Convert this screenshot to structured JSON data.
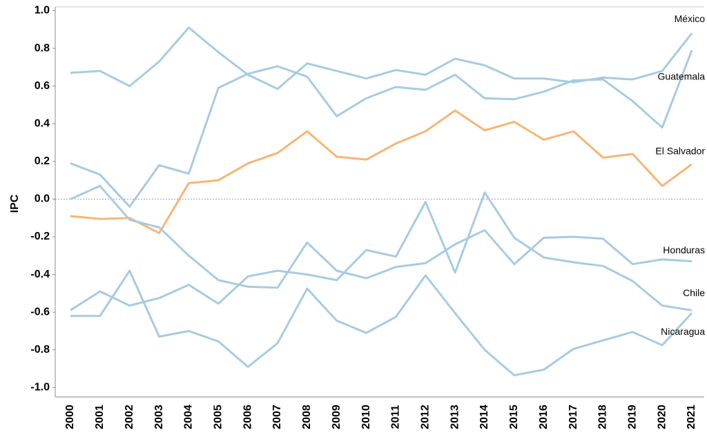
{
  "chart_data": {
    "type": "line",
    "y_label": "IPC",
    "categories": [
      "2000",
      "2001",
      "2002",
      "2003",
      "2004",
      "2005",
      "2006",
      "2007",
      "2008",
      "2009",
      "2010",
      "2011",
      "2012",
      "2013",
      "2014",
      "2015",
      "2016",
      "2017",
      "2018",
      "2019",
      "2020",
      "2021"
    ],
    "ylim": [
      -1.05,
      1.02
    ],
    "yticks": [
      {
        "value": -1.0,
        "label": "-1.0"
      },
      -0.8,
      -0.6,
      -0.4,
      -0.2,
      {
        "value": 0.0,
        "label": "0.0"
      },
      0.2,
      0.4,
      0.6,
      0.8,
      {
        "value": 1.0,
        "label": "1.0"
      }
    ],
    "zero_line": true,
    "series": [
      {
        "name": "México",
        "color": "#a6cbe3",
        "values": [
          0.67,
          0.68,
          0.6,
          0.73,
          0.91,
          0.78,
          0.66,
          0.585,
          0.72,
          0.68,
          0.64,
          0.685,
          0.66,
          0.745,
          0.71,
          0.64,
          0.64,
          0.62,
          0.645,
          0.635,
          0.68,
          0.88
        ]
      },
      {
        "name": "Guatemala",
        "color": "#a6cbe3",
        "values": [
          0.19,
          0.13,
          -0.04,
          0.18,
          0.135,
          0.59,
          0.665,
          0.705,
          0.65,
          0.44,
          0.535,
          0.595,
          0.58,
          0.66,
          0.535,
          0.53,
          0.57,
          0.63,
          0.635,
          0.52,
          0.38,
          0.79
        ]
      },
      {
        "name": "El Salvador",
        "color": "#f8b574",
        "values": [
          -0.09,
          -0.105,
          -0.1,
          -0.18,
          0.085,
          0.1,
          0.19,
          0.245,
          0.36,
          0.225,
          0.21,
          0.295,
          0.36,
          0.47,
          0.365,
          0.41,
          0.315,
          0.36,
          0.22,
          0.24,
          0.07,
          0.185
        ]
      },
      {
        "name": "Honduras",
        "color": "#a6cbe3",
        "values": [
          0.0,
          0.07,
          -0.11,
          -0.15,
          -0.3,
          -0.43,
          -0.465,
          -0.47,
          -0.23,
          -0.38,
          -0.42,
          -0.36,
          -0.34,
          -0.24,
          -0.165,
          -0.345,
          -0.205,
          -0.2,
          -0.21,
          -0.345,
          -0.32,
          -0.33
        ]
      },
      {
        "name": "Chile",
        "color": "#a6cbe3",
        "values": [
          -0.59,
          -0.49,
          -0.565,
          -0.525,
          -0.455,
          -0.555,
          -0.41,
          -0.38,
          -0.4,
          -0.43,
          -0.27,
          -0.305,
          -0.015,
          -0.39,
          0.035,
          -0.205,
          -0.31,
          -0.335,
          -0.355,
          -0.435,
          -0.565,
          -0.59
        ]
      },
      {
        "name": "Nicaragua",
        "color": "#a6cbe3",
        "values": [
          -0.62,
          -0.62,
          -0.38,
          -0.73,
          -0.7,
          -0.755,
          -0.89,
          -0.765,
          -0.475,
          -0.645,
          -0.71,
          -0.625,
          -0.405,
          -0.605,
          -0.8,
          -0.935,
          -0.905,
          -0.795,
          -0.75,
          -0.705,
          -0.775,
          -0.605
        ]
      }
    ]
  }
}
